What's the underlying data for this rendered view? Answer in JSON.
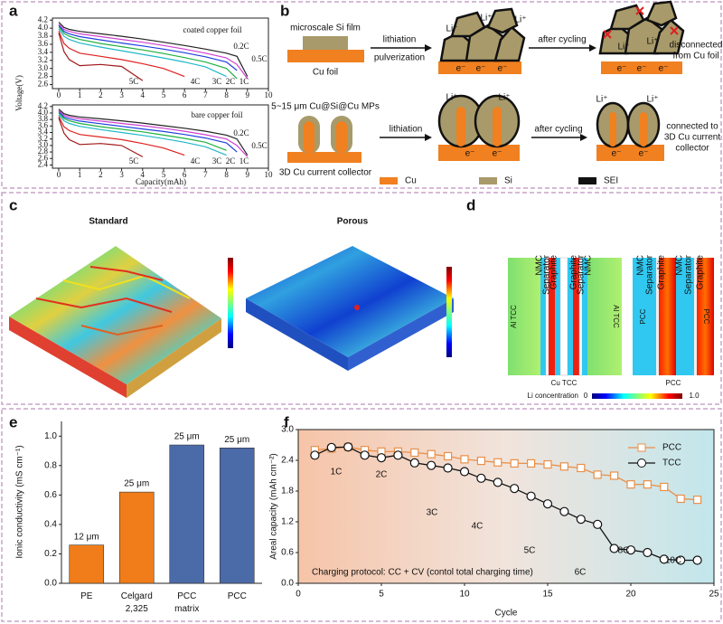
{
  "panel_labels": [
    "a",
    "b",
    "c",
    "d",
    "e",
    "f"
  ],
  "chart_data": [
    {
      "type": "line",
      "annotation": "coated copper foil",
      "y_label": "Voltage(V)",
      "x": [
        0,
        0.25,
        0.5,
        1,
        2,
        3,
        4,
        5,
        6,
        7,
        8,
        8.5,
        9
      ],
      "xlim": [
        -0.3,
        10
      ],
      "xticks": [
        0,
        1,
        2,
        3,
        4,
        5,
        6,
        7,
        8,
        9,
        10
      ],
      "ylim": [
        2.5,
        4.25
      ],
      "yticks": [
        2.6,
        2.8,
        {
          "value": 3,
          "label": "3.0"
        },
        3.2,
        3.4,
        3.6,
        3.8,
        {
          "value": 4,
          "label": "4.0"
        },
        4.2
      ],
      "grid": false,
      "series": [
        {
          "name": "0.2C",
          "color": "#222222",
          "values": [
            4.15,
            4.02,
            3.97,
            3.92,
            3.86,
            3.8,
            3.73,
            3.65,
            3.57,
            3.48,
            3.38,
            3.3,
            2.8
          ]
        },
        {
          "name": "0.5C",
          "color": "#d040d0",
          "values": [
            4.1,
            3.97,
            3.92,
            3.86,
            3.79,
            3.72,
            3.65,
            3.57,
            3.48,
            3.38,
            3.26,
            3.1,
            2.75
          ]
        },
        {
          "name": "1C",
          "color": "#2040e0",
          "values": [
            4.07,
            3.92,
            3.86,
            3.79,
            3.71,
            3.63,
            3.56,
            3.48,
            3.39,
            3.29,
            3.16,
            2.95,
            null
          ]
        },
        {
          "name": "2C",
          "color": "#20b040",
          "values": [
            4.03,
            3.87,
            3.8,
            3.72,
            3.62,
            3.54,
            3.46,
            3.37,
            3.27,
            3.16,
            3.0,
            2.75,
            null
          ]
        },
        {
          "name": "3C",
          "color": "#20b8c8",
          "values": [
            3.98,
            3.8,
            3.72,
            3.63,
            3.53,
            3.44,
            3.35,
            3.26,
            3.16,
            3.04,
            2.8,
            null,
            null
          ]
        },
        {
          "name": "4C",
          "color": "#e02020",
          "values": [
            3.93,
            3.62,
            3.5,
            3.38,
            3.3,
            3.22,
            3.12,
            3.0,
            2.8,
            null,
            null,
            null,
            null
          ]
        },
        {
          "name": "5C",
          "color": "#a01818",
          "values": [
            3.88,
            3.42,
            3.22,
            3.07,
            3.1,
            3.05,
            2.7,
            null,
            null,
            null,
            null,
            null,
            null
          ]
        }
      ]
    },
    {
      "type": "line",
      "annotation": "bare copper foil",
      "x_label": "Capacity(mAh)",
      "x": [
        0,
        0.25,
        0.5,
        1,
        2,
        3,
        4,
        5,
        6,
        7,
        8,
        8.5,
        9
      ],
      "xlim": [
        -0.3,
        10
      ],
      "xticks": [
        0,
        1,
        2,
        3,
        4,
        5,
        6,
        7,
        8,
        9,
        10
      ],
      "ylim": [
        2.3,
        4.25
      ],
      "yticks": [
        2.4,
        2.6,
        2.8,
        {
          "value": 3,
          "label": "3.0"
        },
        3.2,
        3.4,
        3.6,
        3.8,
        {
          "value": 4,
          "label": "4.0"
        },
        4.2
      ],
      "grid": false,
      "series": [
        {
          "name": "0.2C",
          "color": "#222222",
          "values": [
            4.12,
            3.98,
            3.93,
            3.88,
            3.82,
            3.76,
            3.69,
            3.61,
            3.53,
            3.44,
            3.32,
            3.2,
            2.7
          ]
        },
        {
          "name": "0.5C",
          "color": "#d040d0",
          "values": [
            4.08,
            3.93,
            3.88,
            3.82,
            3.75,
            3.68,
            3.61,
            3.53,
            3.44,
            3.33,
            3.2,
            3.0,
            2.65
          ]
        },
        {
          "name": "1C",
          "color": "#2040e0",
          "values": [
            4.04,
            3.88,
            3.82,
            3.75,
            3.67,
            3.59,
            3.51,
            3.43,
            3.34,
            3.23,
            3.08,
            2.8,
            null
          ]
        },
        {
          "name": "2C",
          "color": "#20b040",
          "values": [
            4.0,
            3.83,
            3.76,
            3.68,
            3.58,
            3.5,
            3.42,
            3.32,
            3.22,
            3.1,
            2.85,
            null,
            null
          ]
        },
        {
          "name": "3C",
          "color": "#20b8c8",
          "values": [
            3.95,
            3.76,
            3.68,
            3.59,
            3.49,
            3.4,
            3.31,
            3.21,
            3.1,
            2.96,
            2.7,
            null,
            null
          ]
        },
        {
          "name": "4C",
          "color": "#e02020",
          "values": [
            3.9,
            3.58,
            3.46,
            3.34,
            3.26,
            3.18,
            3.06,
            2.92,
            2.7,
            null,
            null,
            null,
            null
          ]
        },
        {
          "name": "5C",
          "color": "#a01818",
          "values": [
            3.85,
            3.38,
            3.18,
            3.03,
            3.06,
            3.0,
            2.65,
            null,
            null,
            null,
            null,
            null,
            null
          ]
        }
      ]
    },
    {
      "type": "bar",
      "y_label": "Ionic conductivity (mS cm⁻¹)",
      "categories": [
        "PE",
        "Celgard 2,325",
        "PCC matrix",
        "PCC"
      ],
      "values": [
        0.26,
        0.62,
        0.94,
        0.92
      ],
      "annotations": [
        "12 μm",
        "25 μm",
        "25 μm",
        "25 μm"
      ],
      "colors": [
        "#f07d1a",
        "#f07d1a",
        "#4b6aa8",
        "#4b6aa8"
      ],
      "ylim": [
        0,
        1.1
      ],
      "yticks": [
        {
          "value": 0,
          "label": "0.0"
        },
        0.2,
        0.4,
        0.6,
        0.8,
        {
          "value": 1,
          "label": "1.0"
        }
      ],
      "grid": false
    },
    {
      "type": "line",
      "x_label": "Cycle",
      "y_label": "Areal capacity (mAh cm⁻²)",
      "x": [
        1,
        2,
        3,
        4,
        5,
        6,
        7,
        8,
        9,
        10,
        11,
        12,
        13,
        14,
        15,
        16,
        17,
        18,
        19,
        20,
        21,
        22,
        23,
        24
      ],
      "xlim": [
        0,
        25
      ],
      "xticks": [
        0,
        5,
        10,
        15,
        20,
        25
      ],
      "ylim": [
        0,
        3
      ],
      "yticks": [
        {
          "value": 0,
          "label": "0.0"
        },
        0.6,
        1.2,
        1.8,
        2.4,
        {
          "value": 3,
          "label": "3.0"
        }
      ],
      "grid": false,
      "legend": "upper right",
      "annotations": [
        "1C",
        "2C",
        "3C",
        "4C",
        "5C",
        "6C",
        "8C",
        "10C",
        "Charging protocol: CC + CV (contol total charging time)"
      ],
      "series": [
        {
          "name": "PCC",
          "color": "#e8904a",
          "marker": "square",
          "values": [
            2.6,
            2.63,
            2.66,
            2.6,
            2.57,
            2.57,
            2.55,
            2.52,
            2.48,
            2.42,
            2.39,
            2.36,
            2.34,
            2.34,
            2.32,
            2.28,
            2.25,
            2.12,
            2.1,
            1.93,
            1.93,
            1.88,
            1.65,
            1.63
          ]
        },
        {
          "name": "TCC",
          "color": "#111111",
          "marker": "circle",
          "values": [
            2.5,
            2.65,
            2.66,
            2.5,
            2.45,
            2.5,
            2.35,
            2.3,
            2.25,
            2.18,
            2.05,
            1.97,
            1.85,
            1.7,
            1.55,
            1.4,
            1.25,
            1.15,
            0.68,
            0.65,
            0.6,
            0.47,
            0.45,
            0.45
          ]
        }
      ]
    }
  ],
  "panel_b": {
    "top": {
      "film_label": "microscale Si film",
      "foil_label": "Cu foil",
      "step1": [
        "lithiation",
        "pulverization"
      ],
      "step2": "after cycling",
      "result": [
        "disconnected",
        "from Cu foil"
      ],
      "li_labels": [
        "Li⁺",
        "Li⁺",
        "Li⁺",
        "Li⁺",
        "Li⁺"
      ],
      "e_labels": [
        "e⁻",
        "e⁻",
        "e⁻",
        "e⁻",
        "e⁻",
        "e⁻"
      ]
    },
    "bottom": {
      "particle_label": "5~15 μm Cu@Si@Cu MPs",
      "collector_label": "3D Cu current collector",
      "step1": "lithiation",
      "step2": "after cycling",
      "result": [
        "connected to",
        "3D Cu current",
        "collector"
      ],
      "li_labels": [
        "Li⁺",
        "Li⁺",
        "Li⁺",
        "Li⁺"
      ],
      "e_labels": [
        "e⁻",
        "e⁻",
        "e⁻",
        "e⁻"
      ]
    },
    "legend": [
      "Cu",
      "Si",
      "SEI"
    ]
  },
  "panel_c": {
    "titles": [
      "Standard",
      "Porous"
    ]
  },
  "panel_d": {
    "left_layers": [
      "NMC",
      "Separator",
      "Graphite",
      "Graphite",
      "Separator",
      "NMC"
    ],
    "left_side": [
      "Al TCC",
      "Al TCC"
    ],
    "left_center": "Cu TCC",
    "right_layers": [
      "NMC",
      "Separator",
      "Graphite",
      "NMC",
      "Separator",
      "Graphite"
    ],
    "right_side": [
      "PCC",
      "PCC"
    ],
    "right_center": "PCC",
    "colorbar": {
      "title": "Li concentration",
      "min": "0",
      "max": "1.0"
    }
  }
}
